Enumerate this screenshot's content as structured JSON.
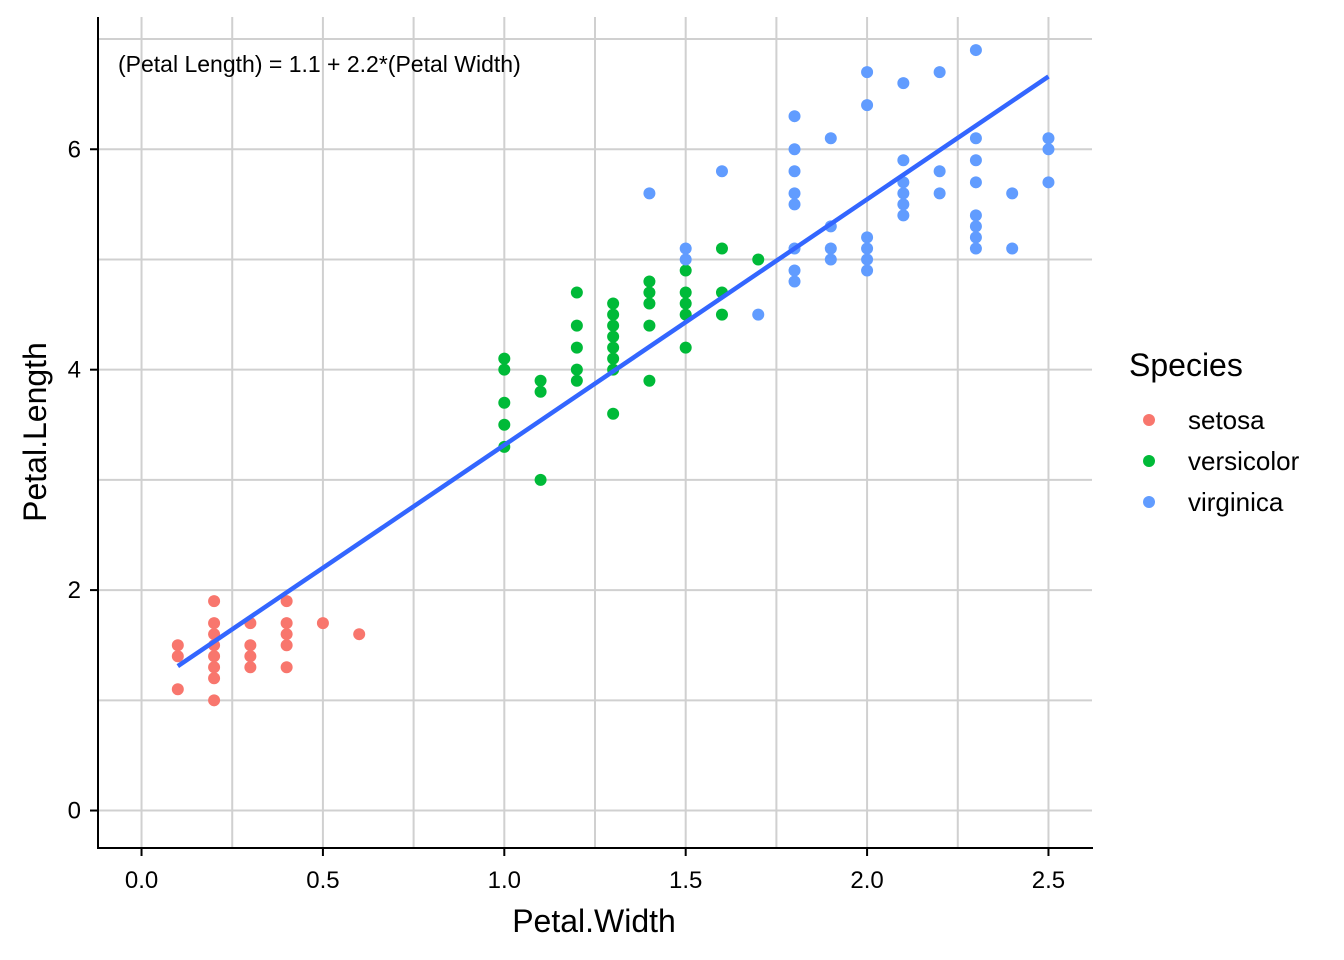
{
  "chart_data": {
    "type": "scatter",
    "xlabel": "Petal.Width",
    "ylabel": "Petal.Length",
    "xlim": [
      -0.12,
      2.62
    ],
    "ylim": [
      -0.34,
      7.2
    ],
    "x_ticks": [
      0.0,
      0.5,
      1.0,
      1.5,
      2.0,
      2.5
    ],
    "x_tick_labels": [
      "0.0",
      "0.5",
      "1.0",
      "1.5",
      "2.0",
      "2.5"
    ],
    "y_ticks": [
      0,
      2,
      4,
      6
    ],
    "y_tick_labels": [
      "0",
      "2",
      "4",
      "6"
    ],
    "x_minor_grid": [
      0.25,
      0.75,
      1.25,
      1.75,
      2.25
    ],
    "y_minor_grid": [
      1,
      3,
      5,
      7
    ],
    "grid": true,
    "annotation": "(Petal Length) = 1.1 + 2.2*(Petal Width)",
    "regression_line": {
      "color": "#3366FF",
      "x": [
        0.1,
        2.5
      ],
      "y": [
        1.31,
        6.66
      ]
    },
    "legend": {
      "title": "Species",
      "position": "right"
    },
    "series": [
      {
        "name": "setosa",
        "color": "#F8766D",
        "points": [
          [
            0.1,
            1.1
          ],
          [
            0.1,
            1.4
          ],
          [
            0.1,
            1.5
          ],
          [
            0.2,
            1.0
          ],
          [
            0.2,
            1.2
          ],
          [
            0.2,
            1.3
          ],
          [
            0.2,
            1.4
          ],
          [
            0.2,
            1.5
          ],
          [
            0.2,
            1.6
          ],
          [
            0.2,
            1.7
          ],
          [
            0.2,
            1.9
          ],
          [
            0.3,
            1.3
          ],
          [
            0.3,
            1.4
          ],
          [
            0.3,
            1.5
          ],
          [
            0.3,
            1.7
          ],
          [
            0.4,
            1.3
          ],
          [
            0.4,
            1.5
          ],
          [
            0.4,
            1.6
          ],
          [
            0.4,
            1.7
          ],
          [
            0.4,
            1.9
          ],
          [
            0.5,
            1.7
          ],
          [
            0.6,
            1.6
          ]
        ]
      },
      {
        "name": "versicolor",
        "color": "#00BA38",
        "points": [
          [
            1.0,
            3.3
          ],
          [
            1.0,
            3.5
          ],
          [
            1.0,
            3.7
          ],
          [
            1.0,
            4.0
          ],
          [
            1.0,
            4.1
          ],
          [
            1.1,
            3.0
          ],
          [
            1.1,
            3.8
          ],
          [
            1.1,
            3.9
          ],
          [
            1.2,
            3.9
          ],
          [
            1.2,
            4.0
          ],
          [
            1.2,
            4.2
          ],
          [
            1.2,
            4.4
          ],
          [
            1.2,
            4.7
          ],
          [
            1.3,
            3.6
          ],
          [
            1.3,
            4.0
          ],
          [
            1.3,
            4.1
          ],
          [
            1.3,
            4.2
          ],
          [
            1.3,
            4.3
          ],
          [
            1.3,
            4.4
          ],
          [
            1.3,
            4.5
          ],
          [
            1.3,
            4.6
          ],
          [
            1.4,
            3.9
          ],
          [
            1.4,
            4.4
          ],
          [
            1.4,
            4.6
          ],
          [
            1.4,
            4.7
          ],
          [
            1.4,
            4.8
          ],
          [
            1.5,
            4.2
          ],
          [
            1.5,
            4.5
          ],
          [
            1.5,
            4.6
          ],
          [
            1.5,
            4.7
          ],
          [
            1.5,
            4.9
          ],
          [
            1.6,
            4.5
          ],
          [
            1.6,
            4.7
          ],
          [
            1.6,
            5.1
          ],
          [
            1.7,
            5.0
          ]
        ]
      },
      {
        "name": "virginica",
        "color": "#619CFF",
        "points": [
          [
            1.4,
            5.6
          ],
          [
            1.5,
            5.0
          ],
          [
            1.5,
            5.1
          ],
          [
            1.6,
            5.8
          ],
          [
            1.7,
            4.5
          ],
          [
            1.8,
            4.8
          ],
          [
            1.8,
            4.9
          ],
          [
            1.8,
            5.1
          ],
          [
            1.8,
            5.5
          ],
          [
            1.8,
            5.6
          ],
          [
            1.8,
            5.8
          ],
          [
            1.8,
            6.0
          ],
          [
            1.8,
            6.3
          ],
          [
            1.9,
            5.0
          ],
          [
            1.9,
            5.1
          ],
          [
            1.9,
            5.3
          ],
          [
            1.9,
            6.1
          ],
          [
            2.0,
            4.9
          ],
          [
            2.0,
            5.0
          ],
          [
            2.0,
            5.1
          ],
          [
            2.0,
            5.2
          ],
          [
            2.0,
            6.4
          ],
          [
            2.0,
            6.7
          ],
          [
            2.1,
            5.4
          ],
          [
            2.1,
            5.5
          ],
          [
            2.1,
            5.6
          ],
          [
            2.1,
            5.7
          ],
          [
            2.1,
            5.9
          ],
          [
            2.1,
            6.6
          ],
          [
            2.2,
            5.6
          ],
          [
            2.2,
            5.8
          ],
          [
            2.2,
            6.7
          ],
          [
            2.3,
            5.1
          ],
          [
            2.3,
            5.2
          ],
          [
            2.3,
            5.3
          ],
          [
            2.3,
            5.4
          ],
          [
            2.3,
            5.7
          ],
          [
            2.3,
            5.9
          ],
          [
            2.3,
            6.1
          ],
          [
            2.3,
            6.9
          ],
          [
            2.4,
            5.1
          ],
          [
            2.4,
            5.6
          ],
          [
            2.5,
            5.7
          ],
          [
            2.5,
            6.0
          ],
          [
            2.5,
            6.1
          ]
        ]
      }
    ]
  }
}
